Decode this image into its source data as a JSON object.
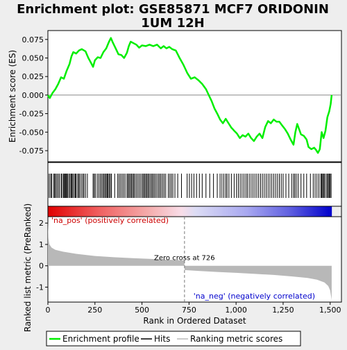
{
  "chart_data": {
    "type": "line",
    "title": "Enrichment plot: GSE85871 MCF7 ORIDONIN 1UM 12H",
    "xlabel": "Rank in Ordered Dataset",
    "es_panel": {
      "ylabel": "Enrichment score (ES)",
      "ylim": [
        -0.09,
        0.087
      ],
      "yticks": [
        0.075,
        0.05,
        0.025,
        0.0,
        -0.025,
        -0.05,
        -0.075
      ],
      "ytick_labels": [
        "0.075",
        "0.050",
        "0.025",
        "0.000",
        "-0.025",
        "-0.050",
        "-0.075"
      ],
      "series_color": "#00ee00",
      "points": [
        [
          0,
          0.0
        ],
        [
          10,
          -0.004
        ],
        [
          25,
          0.003
        ],
        [
          40,
          0.008
        ],
        [
          55,
          0.015
        ],
        [
          70,
          0.024
        ],
        [
          85,
          0.022
        ],
        [
          100,
          0.033
        ],
        [
          115,
          0.042
        ],
        [
          125,
          0.052
        ],
        [
          135,
          0.058
        ],
        [
          150,
          0.056
        ],
        [
          165,
          0.06
        ],
        [
          180,
          0.062
        ],
        [
          200,
          0.059
        ],
        [
          215,
          0.05
        ],
        [
          230,
          0.043
        ],
        [
          240,
          0.038
        ],
        [
          250,
          0.047
        ],
        [
          265,
          0.051
        ],
        [
          280,
          0.05
        ],
        [
          295,
          0.058
        ],
        [
          310,
          0.063
        ],
        [
          325,
          0.072
        ],
        [
          335,
          0.077
        ],
        [
          345,
          0.071
        ],
        [
          360,
          0.063
        ],
        [
          375,
          0.055
        ],
        [
          390,
          0.054
        ],
        [
          405,
          0.05
        ],
        [
          420,
          0.057
        ],
        [
          430,
          0.066
        ],
        [
          440,
          0.072
        ],
        [
          455,
          0.07
        ],
        [
          470,
          0.068
        ],
        [
          485,
          0.064
        ],
        [
          500,
          0.067
        ],
        [
          520,
          0.066
        ],
        [
          540,
          0.068
        ],
        [
          560,
          0.066
        ],
        [
          580,
          0.068
        ],
        [
          600,
          0.063
        ],
        [
          615,
          0.066
        ],
        [
          630,
          0.063
        ],
        [
          645,
          0.065
        ],
        [
          660,
          0.062
        ],
        [
          680,
          0.06
        ],
        [
          700,
          0.05
        ],
        [
          720,
          0.041
        ],
        [
          740,
          0.03
        ],
        [
          760,
          0.022
        ],
        [
          780,
          0.024
        ],
        [
          800,
          0.02
        ],
        [
          820,
          0.015
        ],
        [
          840,
          0.008
        ],
        [
          855,
          0.0
        ],
        [
          870,
          -0.008
        ],
        [
          885,
          -0.018
        ],
        [
          900,
          -0.025
        ],
        [
          915,
          -0.033
        ],
        [
          930,
          -0.038
        ],
        [
          945,
          -0.032
        ],
        [
          960,
          -0.038
        ],
        [
          975,
          -0.044
        ],
        [
          990,
          -0.048
        ],
        [
          1005,
          -0.052
        ],
        [
          1020,
          -0.058
        ],
        [
          1035,
          -0.054
        ],
        [
          1050,
          -0.056
        ],
        [
          1065,
          -0.052
        ],
        [
          1080,
          -0.058
        ],
        [
          1095,
          -0.062
        ],
        [
          1110,
          -0.056
        ],
        [
          1125,
          -0.052
        ],
        [
          1140,
          -0.058
        ],
        [
          1155,
          -0.043
        ],
        [
          1170,
          -0.035
        ],
        [
          1185,
          -0.038
        ],
        [
          1200,
          -0.033
        ],
        [
          1215,
          -0.036
        ],
        [
          1230,
          -0.036
        ],
        [
          1245,
          -0.041
        ],
        [
          1260,
          -0.046
        ],
        [
          1275,
          -0.052
        ],
        [
          1290,
          -0.06
        ],
        [
          1305,
          -0.067
        ],
        [
          1315,
          -0.05
        ],
        [
          1325,
          -0.039
        ],
        [
          1335,
          -0.046
        ],
        [
          1345,
          -0.053
        ],
        [
          1360,
          -0.055
        ],
        [
          1375,
          -0.06
        ],
        [
          1385,
          -0.07
        ],
        [
          1400,
          -0.073
        ],
        [
          1415,
          -0.071
        ],
        [
          1425,
          -0.074
        ],
        [
          1435,
          -0.078
        ],
        [
          1445,
          -0.073
        ],
        [
          1455,
          -0.05
        ],
        [
          1465,
          -0.058
        ],
        [
          1475,
          -0.048
        ],
        [
          1485,
          -0.03
        ],
        [
          1495,
          -0.022
        ],
        [
          1503,
          -0.012
        ],
        [
          1508,
          0.0
        ]
      ]
    },
    "hits": {
      "color": "#000000",
      "ranks": [
        7,
        15,
        20,
        30,
        36,
        40,
        47,
        54,
        61,
        70,
        75,
        83,
        87,
        92,
        96,
        100,
        105,
        112,
        118,
        124,
        128,
        133,
        140,
        146,
        150,
        158,
        164,
        170,
        178,
        186,
        192,
        200,
        210,
        240,
        246,
        252,
        262,
        270,
        278,
        285,
        292,
        298,
        304,
        310,
        315,
        320,
        326,
        332,
        338,
        355,
        370,
        378,
        386,
        394,
        402,
        410,
        420,
        426,
        432,
        438,
        444,
        450,
        456,
        462,
        470,
        478,
        486,
        494,
        502,
        508,
        514,
        520,
        526,
        532,
        538,
        545,
        552,
        558,
        565,
        572,
        580,
        588,
        595,
        602,
        610,
        618,
        626,
        640,
        648,
        656,
        664,
        675,
        690,
        710,
        740,
        752,
        764,
        776,
        790,
        805,
        820,
        840,
        860,
        880,
        900,
        915,
        925,
        935,
        945,
        952,
        962,
        975,
        990,
        1002,
        1012,
        1022,
        1032,
        1042,
        1052,
        1060,
        1070,
        1080,
        1090,
        1100,
        1110,
        1120,
        1130,
        1140,
        1150,
        1160,
        1170,
        1180,
        1190,
        1200,
        1210,
        1220,
        1230,
        1240,
        1250,
        1265,
        1280,
        1295,
        1305,
        1312,
        1320,
        1330,
        1345,
        1360,
        1375,
        1395,
        1410,
        1420,
        1430,
        1440,
        1450,
        1455,
        1460,
        1465,
        1470,
        1478,
        1485,
        1490,
        1495,
        1500,
        1505
      ]
    },
    "ranked_metric": {
      "ylabel": "Ranked list metric (PreRanked)",
      "ylim": [
        -1.7,
        2.3
      ],
      "yticks": [
        2,
        1,
        0,
        -1
      ],
      "ytick_labels": [
        "2",
        "1",
        "0",
        "-1"
      ],
      "fill_color": "#b8b8b8",
      "points": [
        [
          0,
          2.1
        ],
        [
          3,
          1.3
        ],
        [
          8,
          1.0
        ],
        [
          20,
          0.85
        ],
        [
          40,
          0.75
        ],
        [
          80,
          0.66
        ],
        [
          150,
          0.56
        ],
        [
          250,
          0.46
        ],
        [
          350,
          0.4
        ],
        [
          450,
          0.36
        ],
        [
          550,
          0.32
        ],
        [
          650,
          0.28
        ],
        [
          725,
          0.25
        ],
        [
          726,
          -0.2
        ],
        [
          800,
          -0.24
        ],
        [
          900,
          -0.29
        ],
        [
          1000,
          -0.33
        ],
        [
          1100,
          -0.38
        ],
        [
          1200,
          -0.43
        ],
        [
          1300,
          -0.5
        ],
        [
          1380,
          -0.57
        ],
        [
          1430,
          -0.65
        ],
        [
          1470,
          -0.78
        ],
        [
          1490,
          -0.95
        ],
        [
          1500,
          -1.15
        ],
        [
          1508,
          -1.6
        ]
      ],
      "zero_cross_rank": 726,
      "zero_cross_label": "Zero cross at 726",
      "pos_label": "'na_pos' (positively correlated)",
      "neg_label": "'na_neg' (negatively correlated)",
      "pos_label_color": "#cc0000",
      "neg_label_color": "#0000cc"
    },
    "xlim": [
      0,
      1560
    ],
    "xticks": [
      0,
      250,
      500,
      750,
      1000,
      1250,
      1500
    ],
    "xtick_labels": [
      "0",
      "250",
      "500",
      "750",
      "1,000",
      "1,250",
      "1,500"
    ],
    "n_genes": 1509,
    "legend": {
      "placement": "bottom",
      "entries": [
        {
          "label": "Enrichment profile",
          "color": "#00ee00"
        },
        {
          "label": "Hits",
          "color": "#000000"
        },
        {
          "label": "Ranking metric scores",
          "color": "#b8b8b8"
        }
      ]
    }
  }
}
